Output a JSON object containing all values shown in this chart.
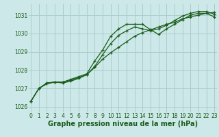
{
  "title": "Graphe pression niveau de la mer (hPa)",
  "bg_color": "#cce8e8",
  "grid_color": "#aacccc",
  "line_color": "#1a5c1a",
  "xlim": [
    -0.3,
    23.3
  ],
  "ylim": [
    1025.7,
    1031.6
  ],
  "yticks": [
    1026,
    1027,
    1028,
    1029,
    1030,
    1031
  ],
  "xticks": [
    0,
    1,
    2,
    3,
    4,
    5,
    6,
    7,
    8,
    9,
    10,
    11,
    12,
    13,
    14,
    15,
    16,
    17,
    18,
    19,
    20,
    21,
    22,
    23
  ],
  "series1": [
    1026.3,
    1027.0,
    1027.3,
    1027.35,
    1027.35,
    1027.5,
    1027.65,
    1027.8,
    1028.5,
    1029.1,
    1029.85,
    1030.25,
    1030.5,
    1030.5,
    1030.5,
    1030.2,
    1029.95,
    1030.25,
    1030.5,
    1030.75,
    1031.0,
    1031.1,
    1031.1,
    1030.9
  ],
  "series2": [
    1026.3,
    1027.0,
    1027.3,
    1027.35,
    1027.3,
    1027.4,
    1027.55,
    1027.75,
    1028.2,
    1028.85,
    1029.45,
    1029.9,
    1030.15,
    1030.35,
    1030.25,
    1030.15,
    1030.25,
    1030.45,
    1030.7,
    1030.95,
    1031.1,
    1031.2,
    1031.2,
    1031.05
  ],
  "series3": [
    1026.3,
    1027.0,
    1027.25,
    1027.35,
    1027.35,
    1027.45,
    1027.6,
    1027.75,
    1028.15,
    1028.6,
    1028.95,
    1029.25,
    1029.55,
    1029.85,
    1030.05,
    1030.2,
    1030.35,
    1030.5,
    1030.6,
    1030.8,
    1030.9,
    1031.0,
    1031.1,
    1031.15
  ],
  "title_fontsize": 7,
  "tick_fontsize": 5.5,
  "lw": 0.9,
  "ms": 3.5
}
